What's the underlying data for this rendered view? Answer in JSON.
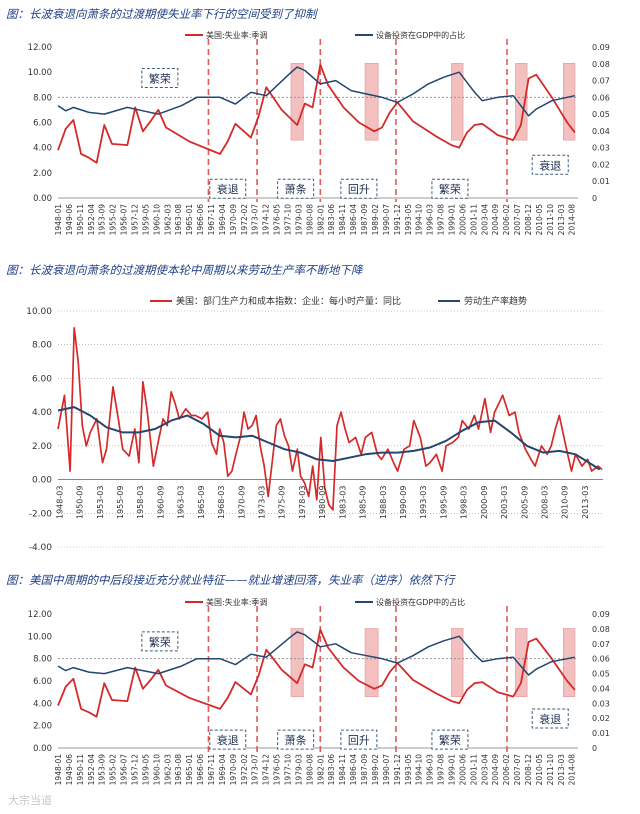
{
  "figures": [
    {
      "title": "图：长波衰退向萧条的过渡期使失业率下行的空间受到了抑制"
    },
    {
      "title": "图：长波衰退向萧条的过渡期使本轮中周期以来劳动生产率不断地下降"
    },
    {
      "title": "图：美国中周期的中后段接近充分就业特征——就业增速回落，失业率（逆序）依然下行"
    }
  ],
  "watermark": "大宗当道",
  "chart_data": [
    {
      "type": "line",
      "legend_position": "top",
      "series": [
        {
          "name": "美国:失业率:季调",
          "color": "#d42a2a",
          "axis": "left",
          "x": [
            1948,
            1949,
            1950,
            1951,
            1952,
            1953,
            1954,
            1955,
            1957,
            1958,
            1959,
            1960,
            1961,
            1962,
            1965,
            1969,
            1970,
            1971,
            1973,
            1974,
            1975,
            1977,
            1979,
            1980,
            1981,
            1982,
            1983,
            1985,
            1987,
            1989,
            1990,
            1991,
            1992,
            1994,
            1997,
            1999,
            2000,
            2001,
            2002,
            2003,
            2005,
            2007,
            2008,
            2009,
            2010,
            2012,
            2014,
            2015
          ],
          "y": [
            3.8,
            5.5,
            6.2,
            3.5,
            3.2,
            2.8,
            5.8,
            4.3,
            4.2,
            7.2,
            5.3,
            6.1,
            7.0,
            5.6,
            4.5,
            3.5,
            4.5,
            5.9,
            4.8,
            6.5,
            8.8,
            7.0,
            5.8,
            7.5,
            7.2,
            10.6,
            9.0,
            7.2,
            6.0,
            5.3,
            5.6,
            6.8,
            7.6,
            6.1,
            4.9,
            4.2,
            4.0,
            5.2,
            5.8,
            5.9,
            5.0,
            4.6,
            5.8,
            9.5,
            9.8,
            8.0,
            6.0,
            5.2
          ]
        },
        {
          "name": "设备投资在GDP中的占比",
          "color": "#24466f",
          "axis": "right",
          "x": [
            1948,
            1949,
            1950,
            1952,
            1954,
            1957,
            1959,
            1961,
            1964,
            1966,
            1969,
            1971,
            1973,
            1975,
            1978,
            1979,
            1980,
            1982,
            1984,
            1986,
            1988,
            1990,
            1992,
            1994,
            1996,
            1998,
            2000,
            2002,
            2003,
            2005,
            2007,
            2009,
            2010,
            2012,
            2014,
            2015
          ],
          "y": [
            0.055,
            0.052,
            0.054,
            0.051,
            0.05,
            0.054,
            0.052,
            0.05,
            0.055,
            0.06,
            0.06,
            0.056,
            0.063,
            0.061,
            0.074,
            0.078,
            0.076,
            0.068,
            0.07,
            0.064,
            0.062,
            0.06,
            0.057,
            0.062,
            0.068,
            0.072,
            0.075,
            0.063,
            0.058,
            0.06,
            0.061,
            0.049,
            0.053,
            0.058,
            0.06,
            0.061
          ]
        }
      ],
      "xticks": [
        "1948-01",
        "1949-06",
        "1950-11",
        "1952-04",
        "1953-09",
        "1955-02",
        "1956-07",
        "1957-12",
        "1959-05",
        "1960-10",
        "1962-03",
        "1963-08",
        "1965-01",
        "1966-06",
        "1967-11",
        "1969-04",
        "1970-09",
        "1972-02",
        "1973-07",
        "1974-12",
        "1976-05",
        "1977-10",
        "1979-03",
        "1980-08",
        "1982-01",
        "1983-06",
        "1984-11",
        "1986-04",
        "1987-09",
        "1989-02",
        "1990-07",
        "1991-12",
        "1993-05",
        "1994-10",
        "1996-03",
        "1997-08",
        "1999-01",
        "2000-06",
        "2001-11",
        "2003-04",
        "2004-09",
        "2006-02",
        "2007-07",
        "2008-12",
        "2010-05",
        "2011-10",
        "2013-03",
        "2014-08"
      ],
      "ylim_left": [
        0,
        12
      ],
      "yticks_left": [
        "0.00",
        "2.00",
        "4.00",
        "6.00",
        "8.00",
        "10.00",
        "12.00"
      ],
      "ylim_right": [
        0,
        0.09
      ],
      "yticks_right": [
        "0",
        "0.01",
        "0.02",
        "0.03",
        "0.04",
        "0.05",
        "0.06",
        "0.07",
        "0.08",
        "0.09"
      ],
      "reference_line": 8.0,
      "phase_dividers": [
        1967.5,
        1973.8,
        1982.0,
        1991.8,
        2006.2
      ],
      "shaded_bars": [
        [
          1978.2,
          1979.8
        ],
        [
          1987.8,
          1989.5
        ],
        [
          1999.0,
          2000.5
        ],
        [
          2007.3,
          2008.8
        ],
        [
          2013.5,
          2015.0
        ]
      ],
      "annotations": [
        {
          "text": "繁荣",
          "x": 1961.2,
          "y": 9.5
        },
        {
          "text": "衰退",
          "x": 1970.0,
          "y": 0.7
        },
        {
          "text": "萧条",
          "x": 1978.8,
          "y": 0.7
        },
        {
          "text": "回升",
          "x": 1987.0,
          "y": 0.7
        },
        {
          "text": "繁荣",
          "x": 1998.8,
          "y": 0.7
        },
        {
          "text": "衰退",
          "x": 2011.8,
          "y": 2.6
        }
      ]
    },
    {
      "type": "line",
      "legend_position": "top",
      "series": [
        {
          "name": "美国：部门生产力和成本指数：企业：每小时产量：同比",
          "color": "#d42a2a",
          "x": [
            1948,
            1948.8,
            1949.5,
            1950,
            1950.5,
            1951,
            1951.5,
            1952,
            1952.8,
            1953.5,
            1954,
            1954.8,
            1955.5,
            1956,
            1956.8,
            1957.5,
            1958,
            1958.5,
            1959,
            1959.8,
            1960.5,
            1961,
            1961.5,
            1962,
            1962.5,
            1963,
            1963.8,
            1964.5,
            1965,
            1965.8,
            1966.5,
            1967,
            1967.6,
            1968,
            1968.5,
            1969,
            1969.5,
            1970,
            1970.6,
            1971,
            1971.5,
            1972,
            1972.5,
            1973,
            1973.5,
            1974,
            1974.6,
            1975,
            1975.5,
            1976,
            1976.5,
            1977,
            1977.6,
            1978,
            1978.5,
            1979,
            1979.5,
            1980,
            1980.5,
            1981,
            1981.5,
            1982,
            1982.5,
            1983,
            1983.5,
            1984,
            1984.8,
            1985.5,
            1986,
            1986.8,
            1987.5,
            1988,
            1988.8,
            1989.5,
            1990,
            1990.8,
            1991.5,
            1992,
            1992.8,
            1993.5,
            1994,
            1994.8,
            1995.5,
            1996,
            1996.8,
            1997.5,
            1998,
            1998.8,
            1999.5,
            2000,
            2000.8,
            2001.5,
            2002,
            2002.5,
            2003,
            2003.8,
            2004.5,
            2005,
            2005.8,
            2006.5,
            2007,
            2007.8,
            2008.5,
            2009,
            2009.5,
            2010,
            2010.8,
            2011.5,
            2012,
            2012.8,
            2013.5,
            2014,
            2014.8,
            2015.3
          ],
          "y": [
            3.0,
            5.0,
            0.5,
            9.0,
            7.0,
            3.2,
            2.0,
            2.8,
            3.6,
            1.0,
            1.8,
            5.5,
            3.5,
            1.8,
            1.4,
            3.0,
            1.0,
            5.8,
            4.2,
            0.8,
            2.5,
            3.6,
            3.2,
            5.2,
            4.5,
            3.6,
            4.2,
            3.8,
            3.8,
            3.6,
            4.0,
            2.2,
            1.5,
            3.0,
            2.2,
            0.2,
            0.5,
            1.5,
            2.6,
            4.0,
            3.0,
            3.2,
            3.8,
            2.0,
            0.8,
            -1.0,
            1.5,
            3.2,
            3.6,
            2.6,
            2.0,
            0.5,
            1.8,
            0.2,
            -0.2,
            -1.0,
            0.8,
            -1.2,
            2.5,
            -0.5,
            -1.5,
            -1.8,
            3.2,
            4.0,
            3.0,
            2.2,
            2.5,
            1.5,
            2.5,
            2.8,
            1.5,
            1.2,
            1.8,
            1.0,
            0.5,
            1.8,
            2.0,
            3.5,
            2.5,
            0.8,
            1.0,
            1.5,
            0.5,
            2.0,
            2.2,
            2.5,
            3.5,
            3.0,
            3.8,
            3.0,
            4.8,
            2.8,
            4.0,
            4.5,
            5.0,
            3.8,
            4.0,
            2.8,
            1.8,
            1.2,
            0.8,
            2.0,
            1.5,
            2.0,
            3.0,
            3.8,
            2.0,
            0.5,
            1.5,
            0.8,
            1.2,
            0.5,
            0.8,
            0.6
          ]
        },
        {
          "name": "劳动生产率趋势",
          "color": "#24466f",
          "x": [
            1948,
            1950,
            1952,
            1954,
            1956,
            1958,
            1960,
            1962,
            1964,
            1966,
            1968,
            1970,
            1972,
            1974,
            1976,
            1978,
            1980,
            1982,
            1984,
            1986,
            1988,
            1990,
            1992,
            1994,
            1996,
            1998,
            2000,
            2002,
            2004,
            2006,
            2008,
            2010,
            2012,
            2014,
            2015
          ],
          "y": [
            4.1,
            4.3,
            3.8,
            3.1,
            2.8,
            2.8,
            3.0,
            3.5,
            3.8,
            3.3,
            2.6,
            2.5,
            2.6,
            2.2,
            1.8,
            1.6,
            1.2,
            1.1,
            1.3,
            1.5,
            1.6,
            1.6,
            1.7,
            1.9,
            2.3,
            2.9,
            3.4,
            3.5,
            2.8,
            2.0,
            1.6,
            1.7,
            1.5,
            0.9,
            0.6
          ]
        }
      ],
      "xticks": [
        "1948-03",
        "1950-09",
        "1953-03",
        "1955-09",
        "1958-03",
        "1960-09",
        "1963-03",
        "1965-09",
        "1968-03",
        "1970-09",
        "1973-03",
        "1975-09",
        "1978-03",
        "1980-09",
        "1983-03",
        "1985-09",
        "1988-03",
        "1990-09",
        "1993-03",
        "1995-09",
        "1998-03",
        "2000-09",
        "2003-03",
        "2005-09",
        "2008-03",
        "2010-09",
        "2013-03"
      ],
      "ylim": [
        -4,
        10
      ],
      "yticks": [
        "-4.00",
        "-2.00",
        "0.00",
        "2.00",
        "4.00",
        "6.00",
        "8.00",
        "10.00"
      ],
      "grid": true
    },
    {
      "type": "line",
      "legend_position": "top",
      "series_same_as": 0,
      "xticks": [
        "1948-01",
        "1949-06",
        "1950-11",
        "1952-04",
        "1953-09",
        "1955-02",
        "1956-07",
        "1957-12",
        "1959-05",
        "1960-10",
        "1962-03",
        "1963-08",
        "1965-01",
        "1966-06",
        "1967-11",
        "1969-04",
        "1970-09",
        "1972-02",
        "1973-07",
        "1974-12",
        "1976-05",
        "1977-10",
        "1979-03",
        "1980-08",
        "1982-01",
        "1983-06",
        "1984-11",
        "1986-04",
        "1987-09",
        "1989-02",
        "1990-07",
        "1991-12",
        "1993-05",
        "1994-10",
        "1996-03",
        "1997-08",
        "1999-01",
        "2000-06",
        "2001-11",
        "2003-04",
        "2004-09",
        "2006-02",
        "2007-07",
        "2008-12",
        "2010-05",
        "2011-10",
        "2013-03",
        "2014-08"
      ],
      "annotations": [
        {
          "text": "繁荣",
          "x": 1961.2,
          "y": 9.5
        },
        {
          "text": "衰退",
          "x": 1970.0,
          "y": 0.7
        },
        {
          "text": "萧条",
          "x": 1978.8,
          "y": 0.7
        },
        {
          "text": "回升",
          "x": 1987.0,
          "y": 0.7
        },
        {
          "text": "繁荣",
          "x": 1998.8,
          "y": 0.7
        },
        {
          "text": "衰退",
          "x": 2011.8,
          "y": 2.6
        }
      ]
    }
  ]
}
